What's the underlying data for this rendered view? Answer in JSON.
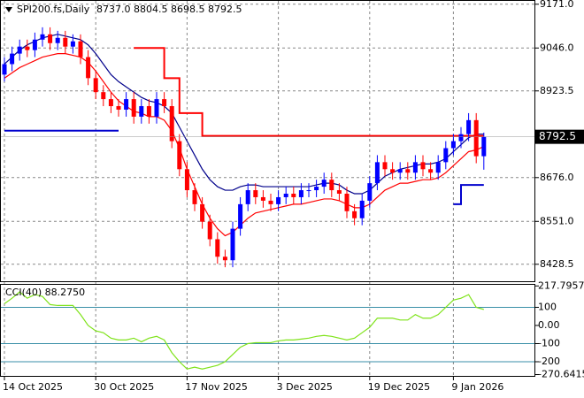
{
  "chart_data": [
    {
      "type": "candlestick",
      "title": "SPI200.fs,Daily",
      "title_values": "8737.0 8804.5 8698.5 8792.5",
      "categories": [
        "14 Oct 2025",
        null,
        null,
        null,
        null,
        null,
        null,
        null,
        null,
        null,
        null,
        null,
        "30 Oct 2025",
        null,
        null,
        null,
        null,
        null,
        null,
        null,
        null,
        null,
        null,
        null,
        "17 Nov 2025",
        null,
        null,
        null,
        null,
        null,
        null,
        null,
        null,
        null,
        null,
        null,
        "3 Dec 2025",
        null,
        null,
        null,
        null,
        null,
        null,
        null,
        null,
        null,
        null,
        null,
        "19 Dec 2025",
        null,
        null,
        null,
        null,
        null,
        null,
        null,
        null,
        null,
        null,
        "9 Jan 2026",
        null,
        null,
        null,
        null
      ],
      "open": [
        8970,
        9000,
        9030,
        9050,
        9040,
        9070,
        9085,
        9060,
        9075,
        9050,
        9065,
        9020,
        8960,
        8920,
        8900,
        8880,
        8870,
        8900,
        8850,
        8880,
        8850,
        8900,
        8880,
        8780,
        8700,
        8640,
        8600,
        8550,
        8500,
        8450,
        8440,
        8530,
        8600,
        8640,
        8620,
        8610,
        8600,
        8620,
        8630,
        8620,
        8640,
        8640,
        8650,
        8670,
        8640,
        8630,
        8580,
        8560,
        8610,
        8660,
        8720,
        8700,
        8690,
        8700,
        8690,
        8720,
        8700,
        8690,
        8720,
        8760,
        8780,
        8800,
        8840,
        8737
      ],
      "high": [
        9020,
        9050,
        9070,
        9070,
        9090,
        9105,
        9105,
        9095,
        9095,
        9085,
        9085,
        9040,
        8980,
        8940,
        8920,
        8900,
        8920,
        8920,
        8900,
        8900,
        8920,
        8920,
        8900,
        8800,
        8720,
        8660,
        8620,
        8570,
        8520,
        8470,
        8550,
        8620,
        8660,
        8660,
        8640,
        8630,
        8640,
        8650,
        8650,
        8660,
        8660,
        8670,
        8690,
        8690,
        8660,
        8650,
        8600,
        8630,
        8680,
        8740,
        8740,
        8720,
        8720,
        8720,
        8740,
        8740,
        8720,
        8740,
        8780,
        8800,
        8820,
        8860,
        8860,
        8804.5
      ],
      "low": [
        8950,
        8980,
        9010,
        9020,
        9020,
        9050,
        9040,
        9040,
        9030,
        9030,
        9000,
        8940,
        8900,
        8880,
        8860,
        8850,
        8850,
        8830,
        8830,
        8830,
        8830,
        8860,
        8760,
        8680,
        8620,
        8580,
        8530,
        8480,
        8430,
        8420,
        8420,
        8510,
        8580,
        8600,
        8590,
        8580,
        8580,
        8600,
        8600,
        8600,
        8620,
        8620,
        8630,
        8620,
        8610,
        8560,
        8540,
        8540,
        8590,
        8640,
        8680,
        8670,
        8670,
        8670,
        8670,
        8680,
        8670,
        8670,
        8700,
        8740,
        8760,
        8780,
        8717,
        8698.5
      ],
      "close": [
        9000,
        9030,
        9050,
        9040,
        9070,
        9085,
        9060,
        9075,
        9050,
        9065,
        9020,
        8960,
        8920,
        8900,
        8880,
        8870,
        8900,
        8850,
        8880,
        8850,
        8900,
        8880,
        8780,
        8700,
        8640,
        8600,
        8550,
        8500,
        8450,
        8440,
        8530,
        8600,
        8640,
        8620,
        8610,
        8600,
        8620,
        8630,
        8620,
        8640,
        8640,
        8650,
        8670,
        8640,
        8630,
        8580,
        8560,
        8610,
        8660,
        8720,
        8700,
        8690,
        8700,
        8690,
        8720,
        8700,
        8690,
        8720,
        8760,
        8780,
        8800,
        8840,
        8737,
        8792.5
      ],
      "up_color": "#0000ff",
      "down_color": "#ff0000",
      "overlays": [
        {
          "color": "#00008b",
          "step": false,
          "values": [
            9000,
            9020,
            9040,
            9055,
            9065,
            9075,
            9080,
            9085,
            9080,
            9075,
            9070,
            9055,
            9030,
            9000,
            8970,
            8950,
            8935,
            8920,
            8905,
            8895,
            8890,
            8880,
            8860,
            8820,
            8780,
            8740,
            8700,
            8670,
            8650,
            8640,
            8640,
            8650,
            8655,
            8655,
            8650,
            8650,
            8650,
            8650,
            8650,
            8650,
            8650,
            8655,
            8660,
            8660,
            8655,
            8640,
            8630,
            8630,
            8640,
            8660,
            8680,
            8690,
            8700,
            8705,
            8710,
            8715,
            8715,
            8720,
            8730,
            8750,
            8770,
            8790,
            8800,
            8800
          ]
        },
        {
          "color": "#ff0000",
          "step": false,
          "values": [
            8960,
            8975,
            8990,
            9000,
            9010,
            9020,
            9025,
            9030,
            9030,
            9025,
            9020,
            9005,
            8980,
            8950,
            8920,
            8895,
            8880,
            8865,
            8860,
            8850,
            8850,
            8840,
            8810,
            8760,
            8700,
            8650,
            8600,
            8560,
            8530,
            8510,
            8520,
            8540,
            8560,
            8575,
            8580,
            8585,
            8590,
            8595,
            8600,
            8600,
            8605,
            8610,
            8615,
            8615,
            8610,
            8600,
            8590,
            8590,
            8600,
            8620,
            8640,
            8650,
            8660,
            8660,
            8665,
            8670,
            8670,
            8675,
            8690,
            8710,
            8730,
            8750,
            8755,
            8765
          ]
        },
        {
          "color": "#ff0000",
          "step": true,
          "values": [
            null,
            null,
            null,
            null,
            null,
            null,
            null,
            null,
            null,
            null,
            null,
            null,
            null,
            null,
            null,
            null,
            null,
            9046,
            9046,
            9046,
            9046,
            8960,
            8960,
            8860,
            8860,
            8860,
            8795,
            8795,
            8795,
            8795,
            8795,
            8795,
            8795,
            8795,
            8795,
            8795,
            8795,
            8795,
            8795,
            8795,
            8795,
            8795,
            8795,
            8795,
            8795,
            8795,
            8795,
            8795,
            8795,
            8795,
            8795,
            8795,
            8795,
            8795,
            8795,
            8795,
            8795,
            8795,
            8795,
            8795,
            8795,
            8795,
            8795,
            8795
          ]
        },
        {
          "color": "#0000cd",
          "step": true,
          "values": [
            8810,
            8810,
            8810,
            8810,
            8810,
            8810,
            8810,
            8810,
            8810,
            8810,
            8810,
            8810,
            8810,
            8810,
            8810,
            8810,
            null,
            null,
            null,
            null,
            null,
            null,
            null,
            null,
            null,
            null,
            null,
            null,
            null,
            null,
            null,
            null,
            null,
            null,
            null,
            null,
            null,
            null,
            null,
            null,
            null,
            null,
            null,
            null,
            null,
            null,
            null,
            null,
            null,
            null,
            null,
            null,
            null,
            null,
            null,
            null,
            null,
            null,
            null,
            8600,
            8655,
            8655,
            8655,
            8655
          ]
        }
      ],
      "ylim": [
        8380,
        9178
      ],
      "yticks": [
        {
          "value": 9171,
          "label": "9171.0"
        },
        {
          "value": 9046,
          "label": "9046.0"
        },
        {
          "value": 8923.5,
          "label": "8923.5"
        },
        {
          "value": 8676,
          "label": "8676.0"
        },
        {
          "value": 8551,
          "label": "8551.0"
        },
        {
          "value": 8428.5,
          "label": "8428.5"
        }
      ],
      "price_marker": {
        "value": 8792.5,
        "label": "8792.5"
      },
      "grid": true
    },
    {
      "type": "line",
      "title": "CCI(40) 88.2750",
      "series": [
        {
          "color": "#7fe31a",
          "values": [
            120,
            150,
            185,
            150,
            170,
            160,
            115,
            110,
            110,
            110,
            60,
            0,
            -30,
            -40,
            -70,
            -80,
            -80,
            -70,
            -90,
            -70,
            -60,
            -80,
            -150,
            -200,
            -240,
            -230,
            -240,
            -230,
            -220,
            -200,
            -160,
            -120,
            -100,
            -95,
            -95,
            -95,
            -85,
            -80,
            -80,
            -75,
            -70,
            -60,
            -55,
            -60,
            -70,
            -80,
            -70,
            -40,
            -10,
            40,
            40,
            40,
            30,
            30,
            60,
            40,
            40,
            60,
            100,
            140,
            150,
            170,
            100,
            88.275
          ]
        }
      ],
      "ylim": [
        -278,
        229
      ],
      "yticks": [
        217.7957,
        100,
        {
          "value": 0,
          "label": "0.00"
        },
        -100,
        -200,
        -270.6415
      ],
      "levels": [
        100,
        -100,
        -200
      ],
      "level_color": "#3a8fa8"
    }
  ]
}
